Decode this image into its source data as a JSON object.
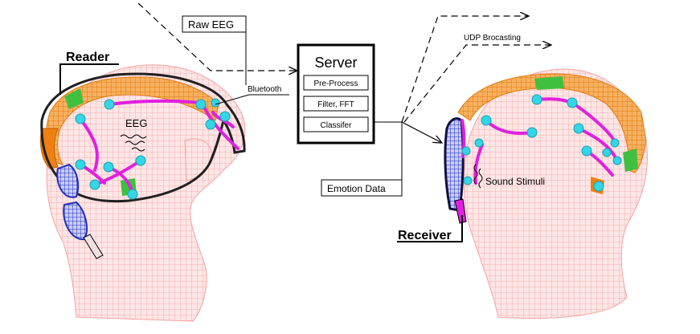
{
  "labels": {
    "raw_eeg": "Raw EEG",
    "bluetooth": "Bluetooth",
    "reader": "Reader",
    "eeg": "EEG",
    "receiver": "Receiver",
    "sound_stimuli": "Sound Stimuli",
    "emotion_data": "Emotion Data",
    "udp_broadcasting": "UDP Brocasting"
  },
  "server": {
    "title": "Server",
    "steps": [
      "Pre-Process",
      "Filter, FFT",
      "Classifer"
    ]
  },
  "colors": {
    "head_mesh": "#f4a0a0",
    "head_fill": "#fde2e2",
    "headset_band": "#f08010",
    "electrode": "#33d6e6",
    "wire": "#e020e0",
    "headphone": "#2030c0",
    "accent_green": "#40c040"
  },
  "icons": {
    "reader_head": "head-mesh-icon",
    "receiver_head": "head-mesh-icon",
    "eeg_wave": "wave-icon",
    "sound_wave": "wave-icon"
  }
}
